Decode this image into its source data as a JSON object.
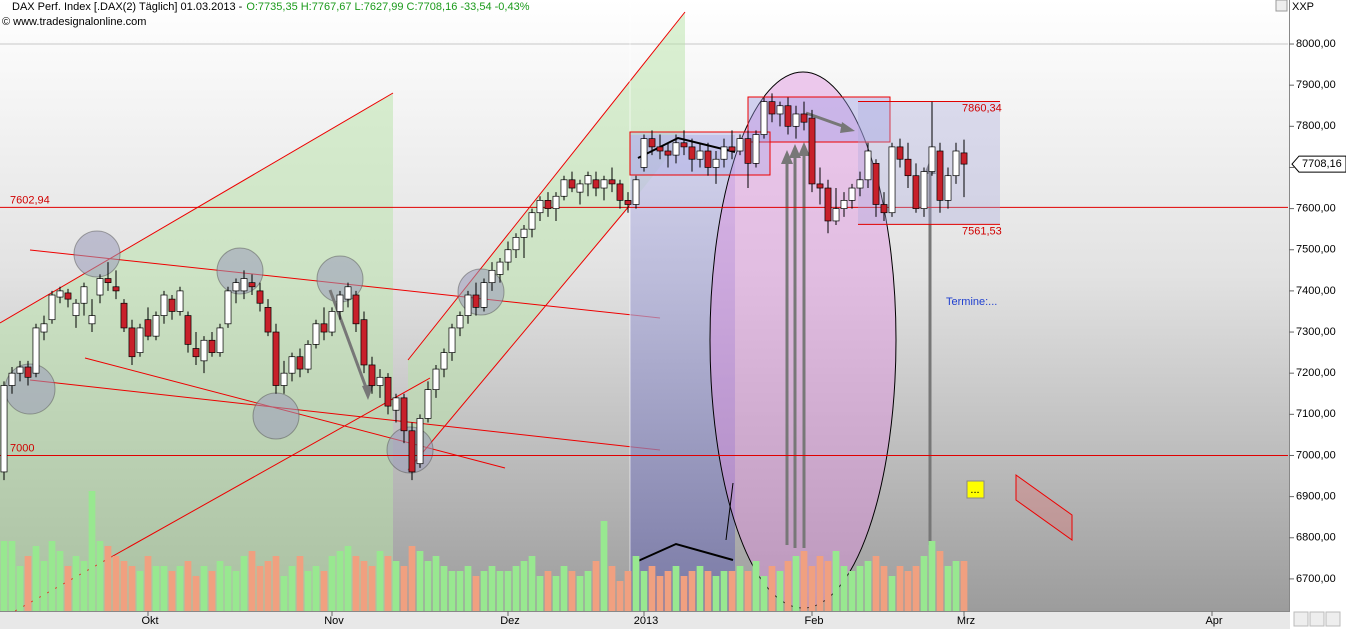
{
  "chart_data": {
    "type": "candlestick",
    "title": "DAX Perf. Index [.DAX(2) Täglich] 01.03.2013 -",
    "quote": "O:7735,35 H:7767,67 L:7627,99 C:7708,16 -33,54 -0,43%",
    "source": "© www.tradesignalonline.com",
    "axis_code": "XXP",
    "annotation": "Termine:...",
    "marker_text": "...",
    "xlim": [
      -0.5,
      160.5
    ],
    "xticks": [
      {
        "value": 18,
        "label": "Okt"
      },
      {
        "value": 41,
        "label": "Nov"
      },
      {
        "value": 63,
        "label": "Dez"
      },
      {
        "value": 80,
        "label": "2013"
      },
      {
        "value": 101,
        "label": "Feb"
      },
      {
        "value": 120,
        "label": "Mrz"
      },
      {
        "value": 151,
        "label": "Apr"
      }
    ],
    "ylim": [
      6622,
      8107
    ],
    "yticks": [
      {
        "value": 6700,
        "label": "6700,00"
      },
      {
        "value": 6800,
        "label": "6800,00"
      },
      {
        "value": 6900,
        "label": "6900,00"
      },
      {
        "value": 7000,
        "label": "7000,00"
      },
      {
        "value": 7100,
        "label": "7100,00"
      },
      {
        "value": 7200,
        "label": "7200,00"
      },
      {
        "value": 7300,
        "label": "7300,00"
      },
      {
        "value": 7400,
        "label": "7400,00"
      },
      {
        "value": 7500,
        "label": "7500,00"
      },
      {
        "value": 7600,
        "label": "7600,00"
      },
      {
        "value": 7700,
        "label": "7700,00"
      },
      {
        "value": 7800,
        "label": "7800,00"
      },
      {
        "value": 7900,
        "label": "7900,00"
      },
      {
        "value": 8000,
        "label": "8000,00"
      }
    ],
    "grid": true,
    "up_color": "#ffffff",
    "down_color": "#c8202a",
    "volume_up_color": "#98e890",
    "volume_down_color": "#f0a080",
    "volume_ylim": [
      0,
      170
    ],
    "last_price": {
      "value": 7708.16,
      "label": "7708,16"
    },
    "hlines": [
      {
        "value": 7602.94,
        "label": "7602,94"
      },
      {
        "value": 7000,
        "label": "7000"
      }
    ],
    "range_box": {
      "top": {
        "value": 7860.34,
        "label": "7860,34"
      },
      "bottom": {
        "value": 7561.53,
        "label": "7561,53"
      }
    },
    "open": [
      6960,
      7170,
      7200,
      7215,
      7200,
      7300,
      7330,
      7385,
      7395,
      7340,
      7370,
      7320,
      7390,
      7430,
      7410,
      7370,
      7310,
      7250,
      7330,
      7290,
      7340,
      7380,
      7350,
      7340,
      7260,
      7230,
      7280,
      7250,
      7320,
      7400,
      7400,
      7420,
      7400,
      7360,
      7300,
      7170,
      7200,
      7240,
      7210,
      7270,
      7320,
      7300,
      7350,
      7380,
      7390,
      7330,
      7220,
      7170,
      7190,
      7110,
      7140,
      7060,
      6980,
      7090,
      7160,
      7210,
      7250,
      7310,
      7340,
      7390,
      7360,
      7420,
      7440,
      7470,
      7500,
      7530,
      7550,
      7590,
      7620,
      7600,
      7630,
      7670,
      7640,
      7660,
      7670,
      7650,
      7670,
      7660,
      7620,
      7610,
      7700,
      7770,
      7750,
      7740,
      7730,
      7760,
      7750,
      7720,
      7740,
      7700,
      7720,
      7750,
      7740,
      7770,
      7710,
      7780,
      7860,
      7830,
      7850,
      7800,
      7830,
      7820,
      7660,
      7650,
      7570,
      7600,
      7620,
      7650,
      7670,
      7710,
      7610,
      7590,
      7750,
      7720,
      7680,
      7600,
      7690,
      7740,
      7620,
      7680,
      7735.35
    ],
    "high": [
      7180,
      7215,
      7230,
      7230,
      7320,
      7340,
      7400,
      7410,
      7405,
      7380,
      7420,
      7380,
      7440,
      7470,
      7450,
      7380,
      7330,
      7320,
      7360,
      7350,
      7400,
      7390,
      7410,
      7350,
      7300,
      7290,
      7300,
      7320,
      7410,
      7430,
      7450,
      7440,
      7420,
      7380,
      7320,
      7230,
      7250,
      7260,
      7280,
      7330,
      7360,
      7360,
      7400,
      7420,
      7400,
      7350,
      7240,
      7210,
      7200,
      7150,
      7150,
      7080,
      7100,
      7180,
      7220,
      7260,
      7320,
      7350,
      7400,
      7420,
      7430,
      7470,
      7480,
      7520,
      7540,
      7560,
      7600,
      7630,
      7640,
      7640,
      7680,
      7690,
      7670,
      7690,
      7690,
      7680,
      7700,
      7670,
      7640,
      7680,
      7780,
      7790,
      7780,
      7760,
      7780,
      7790,
      7770,
      7760,
      7760,
      7740,
      7770,
      7790,
      7780,
      7790,
      7790,
      7870,
      7880,
      7860,
      7870,
      7850,
      7860,
      7840,
      7700,
      7670,
      7650,
      7640,
      7660,
      7690,
      7760,
      7720,
      7640,
      7760,
      7770,
      7760,
      7710,
      7700,
      7860,
      7760,
      7700,
      7760,
      7767.67
    ],
    "low": [
      6940,
      7150,
      7180,
      7170,
      7190,
      7280,
      7320,
      7370,
      7360,
      7310,
      7340,
      7300,
      7370,
      7400,
      7380,
      7300,
      7220,
      7240,
      7280,
      7280,
      7320,
      7330,
      7340,
      7250,
      7220,
      7200,
      7240,
      7240,
      7310,
      7370,
      7380,
      7390,
      7350,
      7290,
      7150,
      7150,
      7180,
      7190,
      7200,
      7260,
      7280,
      7290,
      7330,
      7360,
      7300,
      7200,
      7150,
      7140,
      7100,
      7080,
      7030,
      6940,
      6970,
      7080,
      7140,
      7190,
      7230,
      7290,
      7320,
      7340,
      7350,
      7400,
      7420,
      7450,
      7480,
      7480,
      7530,
      7570,
      7580,
      7570,
      7620,
      7640,
      7610,
      7630,
      7630,
      7620,
      7640,
      7600,
      7590,
      7600,
      7690,
      7730,
      7720,
      7700,
      7710,
      7730,
      7690,
      7700,
      7680,
      7660,
      7700,
      7720,
      7730,
      7650,
      7700,
      7770,
      7810,
      7800,
      7780,
      7770,
      7790,
      7640,
      7610,
      7540,
      7560,
      7580,
      7600,
      7630,
      7650,
      7580,
      7570,
      7580,
      7700,
      7650,
      7590,
      7580,
      7680,
      7590,
      7600,
      7660,
      7627.99
    ],
    "close": [
      7170,
      7200,
      7215,
      7190,
      7310,
      7320,
      7390,
      7400,
      7380,
      7370,
      7410,
      7340,
      7430,
      7420,
      7400,
      7310,
      7240,
      7310,
      7290,
      7340,
      7390,
      7350,
      7400,
      7270,
      7240,
      7280,
      7250,
      7310,
      7400,
      7420,
      7430,
      7410,
      7370,
      7300,
      7170,
      7200,
      7240,
      7210,
      7270,
      7320,
      7300,
      7350,
      7390,
      7410,
      7320,
      7220,
      7170,
      7190,
      7120,
      7140,
      7060,
      6960,
      7090,
      7160,
      7210,
      7250,
      7310,
      7340,
      7390,
      7360,
      7420,
      7450,
      7470,
      7500,
      7530,
      7550,
      7590,
      7620,
      7600,
      7630,
      7670,
      7650,
      7660,
      7680,
      7650,
      7670,
      7660,
      7620,
      7610,
      7670,
      7770,
      7750,
      7740,
      7730,
      7760,
      7750,
      7720,
      7740,
      7700,
      7720,
      7750,
      7740,
      7770,
      7710,
      7780,
      7860,
      7830,
      7850,
      7800,
      7830,
      7810,
      7660,
      7650,
      7570,
      7600,
      7620,
      7650,
      7670,
      7740,
      7610,
      7590,
      7750,
      7720,
      7680,
      7600,
      7690,
      7750,
      7620,
      7680,
      7740,
      7708.16
    ],
    "volume": [
      70,
      70,
      45,
      55,
      65,
      50,
      70,
      60,
      45,
      55,
      50,
      120,
      70,
      65,
      55,
      50,
      45,
      40,
      55,
      45,
      45,
      40,
      45,
      50,
      35,
      45,
      40,
      50,
      45,
      40,
      55,
      60,
      45,
      50,
      55,
      35,
      45,
      55,
      40,
      45,
      40,
      55,
      60,
      65,
      55,
      50,
      45,
      60,
      55,
      50,
      45,
      65,
      60,
      50,
      55,
      45,
      40,
      40,
      45,
      35,
      40,
      45,
      40,
      40,
      45,
      50,
      55,
      35,
      40,
      35,
      45,
      40,
      35,
      40,
      50,
      90,
      45,
      30,
      40,
      55,
      40,
      45,
      35,
      40,
      45,
      35,
      40,
      45,
      40,
      35,
      40,
      40,
      45,
      40,
      50,
      35,
      45,
      40,
      50,
      55,
      60,
      45,
      55,
      50,
      60,
      45,
      40,
      45,
      50,
      55,
      45,
      35,
      45,
      40,
      45,
      55,
      70,
      60,
      45,
      50,
      50
    ]
  }
}
